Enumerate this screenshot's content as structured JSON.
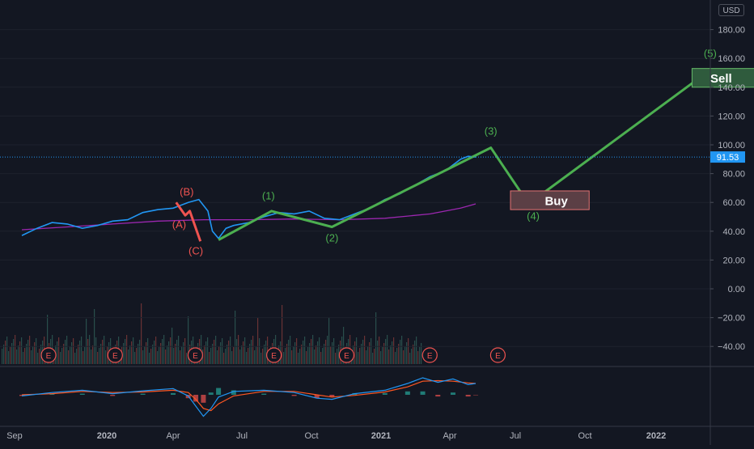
{
  "currency": "USD",
  "last_price": "91.53",
  "colors": {
    "background": "#131722",
    "price_line": "#2196f3",
    "ma_line": "#9c27b0",
    "wave_impulse": "#4caf50",
    "wave_correction": "#ef5350",
    "macd_line": "#2196f3",
    "signal_line": "#ff5722",
    "axis_text": "#b2b5be"
  },
  "chart_data": [
    {
      "type": "line",
      "ylim": [
        -50,
        190
      ],
      "y_ticks": [
        "180.00",
        "160.00",
        "140.00",
        "120.00",
        "100.00",
        "80.00",
        "60.00",
        "40.00",
        "20.00",
        "0.00",
        "−20.00",
        "−40.00"
      ],
      "x_ticks": [
        "Sep",
        "2020",
        "Apr",
        "Jul",
        "Oct",
        "2021",
        "Apr",
        "Jul",
        "Oct",
        "2022"
      ],
      "series": [
        {
          "type": "line",
          "points": [
            [
              0,
              37
            ],
            [
              1,
              42
            ],
            [
              2,
              46
            ],
            [
              3,
              45
            ],
            [
              4,
              42
            ],
            [
              5,
              44
            ],
            [
              6,
              47
            ],
            [
              7,
              48
            ],
            [
              8,
              53
            ],
            [
              9,
              55
            ],
            [
              10,
              56
            ],
            [
              11,
              60
            ],
            [
              11.7,
              62
            ],
            [
              12.3,
              54
            ],
            [
              12.6,
              40
            ],
            [
              13,
              35
            ],
            [
              13.5,
              42
            ],
            [
              14,
              44
            ],
            [
              15,
              46
            ],
            [
              16,
              50
            ],
            [
              17,
              53
            ],
            [
              18,
              52
            ],
            [
              19,
              54
            ],
            [
              20,
              49
            ],
            [
              21,
              48
            ],
            [
              22,
              52
            ],
            [
              23,
              56
            ],
            [
              24,
              62
            ],
            [
              25,
              66
            ],
            [
              26,
              72
            ],
            [
              27,
              78
            ],
            [
              28,
              82
            ],
            [
              28.5,
              86
            ],
            [
              29,
              90
            ],
            [
              29.5,
              92
            ],
            [
              30,
              91.53
            ]
          ]
        },
        {
          "type": "line",
          "points": [
            [
              0,
              41
            ],
            [
              3,
              43
            ],
            [
              6,
              45
            ],
            [
              9,
              47
            ],
            [
              12,
              48
            ],
            [
              15,
              48
            ],
            [
              18,
              48.5
            ],
            [
              21,
              48
            ],
            [
              24,
              49
            ],
            [
              27,
              52
            ],
            [
              29,
              56
            ],
            [
              30,
              59
            ]
          ]
        }
      ],
      "wave_impulse": [
        [
          13,
          34
        ],
        [
          16.5,
          54
        ],
        [
          20.5,
          43
        ],
        [
          31,
          98
        ],
        [
          33.5,
          59
        ],
        [
          45.5,
          152
        ]
      ],
      "wave_correction": [
        [
          10.2,
          60
        ],
        [
          10.8,
          51
        ],
        [
          11.1,
          54
        ],
        [
          11.8,
          33
        ]
      ],
      "wave_labels": [
        {
          "text": "(A)",
          "x": 10.4,
          "y": 42,
          "color": "correction"
        },
        {
          "text": "(B)",
          "x": 10.9,
          "y": 65,
          "color": "correction"
        },
        {
          "text": "(C)",
          "x": 11.5,
          "y": 24,
          "color": "correction"
        },
        {
          "text": "(1)",
          "x": 16.3,
          "y": 62,
          "color": "impulse"
        },
        {
          "text": "(2)",
          "x": 20.5,
          "y": 33,
          "color": "impulse"
        },
        {
          "text": "(3)",
          "x": 31,
          "y": 107,
          "color": "impulse"
        },
        {
          "text": "(4)",
          "x": 33.8,
          "y": 48,
          "color": "impulse"
        },
        {
          "text": "(5)",
          "x": 45.5,
          "y": 161,
          "color": "impulse"
        }
      ],
      "annotations": [
        {
          "text": "Buy",
          "x0": 32.3,
          "x1": 37.5,
          "y0": 55,
          "y1": 68,
          "kind": "buy"
        },
        {
          "text": "Sell",
          "x0": 44.3,
          "x1": 49,
          "y0": 140,
          "y1": 153,
          "kind": "sell"
        }
      ],
      "earnings_markers": [
        "E",
        "E",
        "E",
        "E",
        "E",
        "E",
        "E"
      ],
      "earnings_x": [
        2.3,
        6.7,
        12,
        17.2,
        22,
        27.5,
        32
      ]
    },
    {
      "type": "line",
      "series": [
        {
          "type": "line",
          "points": [
            [
              0,
              -0.1
            ],
            [
              2,
              0.2
            ],
            [
              4,
              0.4
            ],
            [
              6,
              0.1
            ],
            [
              8,
              0.35
            ],
            [
              10,
              0.55
            ],
            [
              11,
              -0.1
            ],
            [
              11.5,
              -1
            ],
            [
              12,
              -1.9
            ],
            [
              12.5,
              -1.2
            ],
            [
              13,
              -0.2
            ],
            [
              14,
              0.3
            ],
            [
              16,
              0.4
            ],
            [
              18,
              0.2
            ],
            [
              19.5,
              -0.3
            ],
            [
              20.5,
              -0.4
            ],
            [
              22,
              0.1
            ],
            [
              24,
              0.4
            ],
            [
              25.5,
              1.0
            ],
            [
              26.5,
              1.5
            ],
            [
              27.5,
              1.1
            ],
            [
              28.5,
              1.4
            ],
            [
              29.5,
              0.9
            ],
            [
              30,
              1.0
            ]
          ]
        },
        {
          "type": "line",
          "points": [
            [
              0,
              0
            ],
            [
              2,
              0.1
            ],
            [
              4,
              0.3
            ],
            [
              6,
              0.2
            ],
            [
              8,
              0.25
            ],
            [
              10,
              0.4
            ],
            [
              11,
              0.2
            ],
            [
              11.5,
              -0.4
            ],
            [
              12,
              -1.2
            ],
            [
              12.5,
              -1.4
            ],
            [
              13,
              -0.8
            ],
            [
              14,
              -0.1
            ],
            [
              16,
              0.3
            ],
            [
              18,
              0.3
            ],
            [
              19.5,
              0
            ],
            [
              20.5,
              -0.2
            ],
            [
              22,
              -0.05
            ],
            [
              24,
              0.25
            ],
            [
              25.5,
              0.7
            ],
            [
              26.5,
              1.2
            ],
            [
              27.5,
              1.25
            ],
            [
              28.5,
              1.2
            ],
            [
              29.5,
              1.05
            ],
            [
              30,
              1.0
            ]
          ]
        }
      ]
    }
  ]
}
